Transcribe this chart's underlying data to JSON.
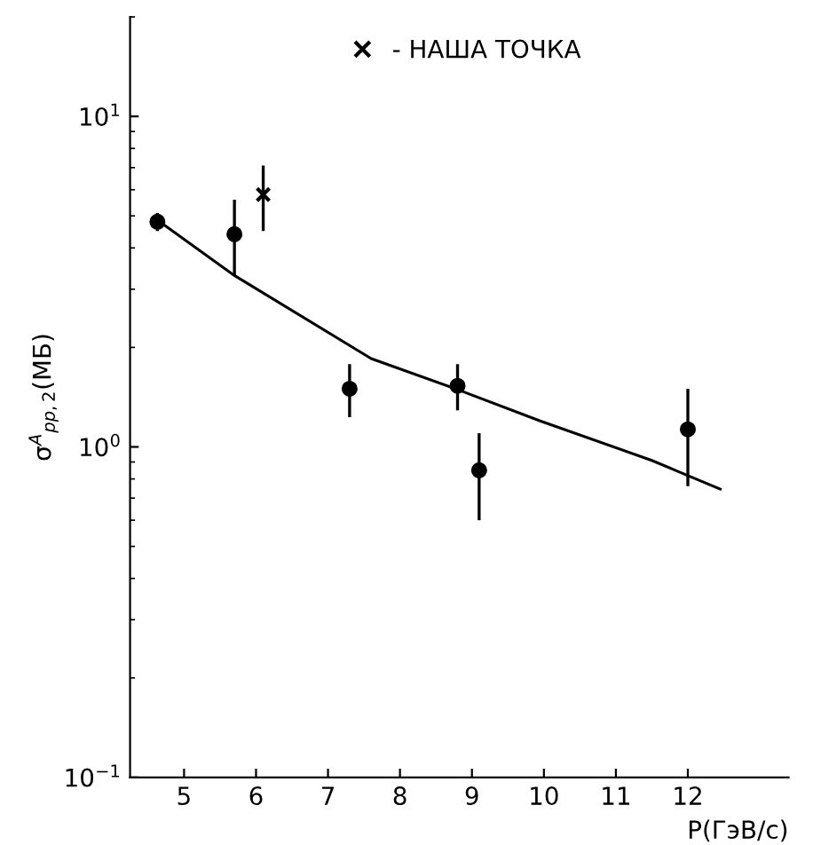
{
  "chart_data": {
    "type": "scatter",
    "xlabel": "P(ГэВ/с)",
    "ylabel": "σ$^{A}$$_{pp,2}$(МБ)",
    "log": "y",
    "xlim": [
      4.25,
      13.4
    ],
    "xticks": [
      5,
      6,
      7,
      8,
      9,
      10,
      11,
      12
    ],
    "ylim": [
      0.1,
      20
    ],
    "yticks": [
      {
        "value": 0.1,
        "label": "10$^{−1}$"
      },
      {
        "value": 1,
        "label": "10$^{0}$"
      },
      {
        "value": 10,
        "label": "10$^{1}$"
      }
    ],
    "grid": false,
    "legend": "top",
    "series": [
      {
        "color": "#000000",
        "marker": "circle",
        "x": [
          4.63,
          5.7,
          7.3,
          8.8,
          9.1,
          12.0
        ],
        "values": [
          4.8,
          4.4,
          1.5,
          1.53,
          0.85,
          1.13
        ],
        "errors": [
          [
            4.5,
            5.1
          ],
          [
            3.3,
            5.6
          ],
          [
            1.23,
            1.78
          ],
          [
            1.29,
            1.78
          ],
          [
            0.6,
            1.1
          ],
          [
            0.76,
            1.5
          ]
        ]
      },
      {
        "name": "- НАША ТОЧКА",
        "color": "#000000",
        "marker": "cross",
        "x": [
          6.1
        ],
        "values": [
          5.8
        ],
        "errors": [
          [
            4.5,
            7.1
          ]
        ]
      },
      {
        "type": "line",
        "color": "#000000",
        "marker": "none",
        "x": [
          4.72,
          5.7,
          7.6,
          8.84,
          9.94,
          11.5,
          12.45
        ],
        "values": [
          4.7,
          3.3,
          1.85,
          1.48,
          1.2,
          0.91,
          0.745
        ]
      }
    ]
  }
}
